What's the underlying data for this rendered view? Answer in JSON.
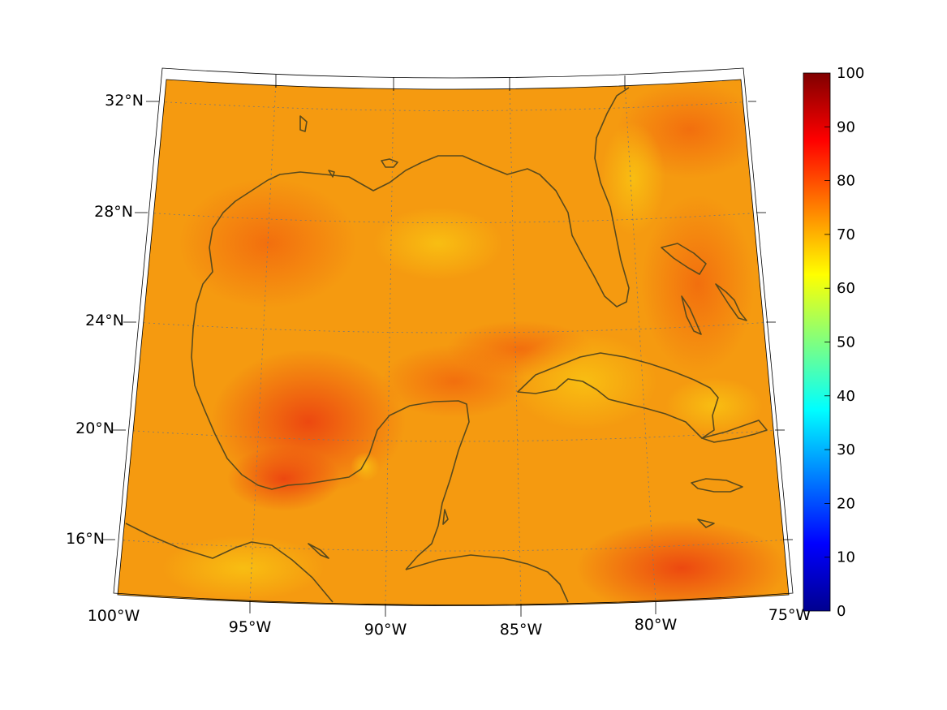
{
  "map": {
    "lat_labels": [
      "32°N",
      "28°N",
      "24°N",
      "20°N",
      "16°N"
    ],
    "lon_labels": [
      "100°W",
      "95°W",
      "90°W",
      "85°W",
      "80°W",
      "75°W"
    ]
  },
  "colorbar": {
    "ticks": [
      "100",
      "90",
      "80",
      "70",
      "60",
      "50",
      "40",
      "30",
      "20",
      "10",
      "0"
    ],
    "range": [
      0,
      100
    ],
    "colormap": "jet"
  },
  "colors": {
    "field_base": "#f59a10",
    "field_warm": "#f26a0e",
    "field_hot": "#ee4b10",
    "field_cool": "#f9c412",
    "coastline": "#5a4a1c",
    "graticule": "#777777"
  }
}
